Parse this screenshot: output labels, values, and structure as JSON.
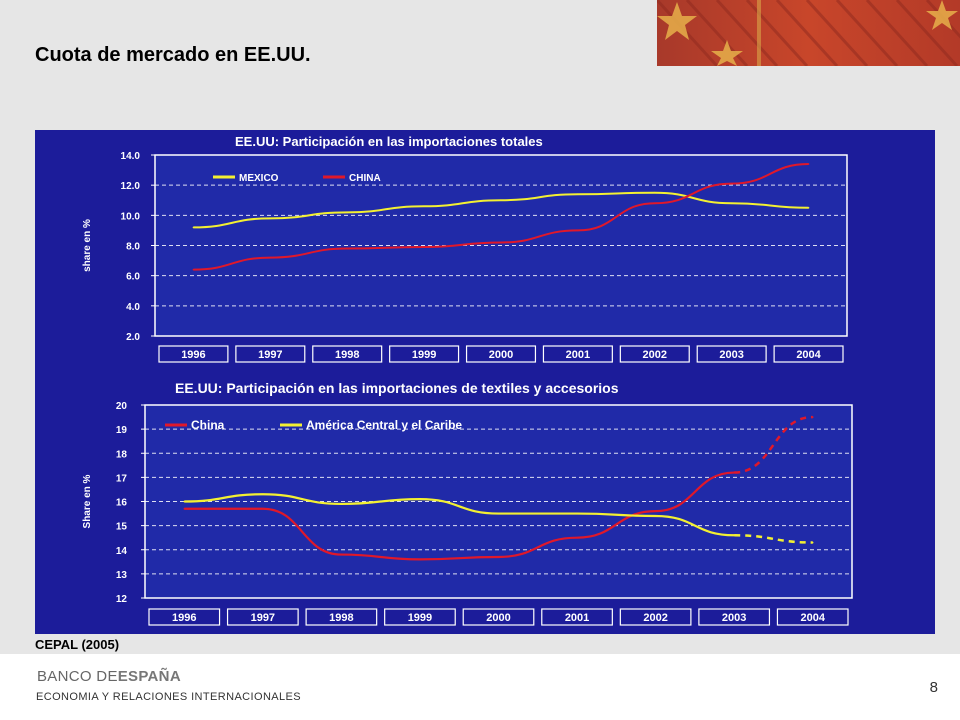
{
  "slide": {
    "title": "Cuota de mercado en EE.UU.",
    "source": "CEPAL (2005)",
    "footer_logo_prefix": "BANCO DE",
    "footer_logo_bold": "ESPAÑA",
    "footer_dept": "ECONOMIA Y RELACIONES INTERNACIONALES",
    "page_number": "8"
  },
  "colors": {
    "panel_bg": "#1c1c9a",
    "plot_bg": "#202aa8",
    "grid": "#ffffff",
    "text": "#ffffff",
    "series_yellow": "#f3f032",
    "series_red": "#e0182a"
  },
  "chart_data": [
    {
      "type": "line",
      "title": "EE.UU: Participación en las importaciones totales",
      "xlabel": "",
      "ylabel": "share en %",
      "categories": [
        "1996",
        "1997",
        "1998",
        "1999",
        "2000",
        "2001",
        "2002",
        "2003",
        "2004"
      ],
      "yticks": [
        "2.0",
        "4.0",
        "6.0",
        "8.0",
        "10.0",
        "12.0",
        "14.0"
      ],
      "ylim": [
        2,
        14
      ],
      "grid": true,
      "legend_position": "top-left",
      "series": [
        {
          "name": "MEXICO",
          "color": "#f3f032",
          "values": [
            9.2,
            9.8,
            10.2,
            10.6,
            11.0,
            11.4,
            11.5,
            10.8,
            10.5
          ]
        },
        {
          "name": "CHINA",
          "color": "#e0182a",
          "values": [
            6.4,
            7.2,
            7.8,
            7.9,
            8.2,
            9.0,
            10.8,
            12.1,
            13.4
          ]
        }
      ]
    },
    {
      "type": "line",
      "title": "EE.UU: Participación en las importaciones de textiles y accesorios",
      "xlabel": "",
      "ylabel": "Share en %",
      "categories": [
        "1996",
        "1997",
        "1998",
        "1999",
        "2000",
        "2001",
        "2002",
        "2003",
        "2004"
      ],
      "yticks": [
        "12",
        "13",
        "14",
        "15",
        "16",
        "17",
        "18",
        "19",
        "20"
      ],
      "ylim": [
        12,
        20
      ],
      "grid": true,
      "legend_position": "top-left",
      "dashed_from": "2003",
      "series": [
        {
          "name": "China",
          "color": "#e0182a",
          "values": [
            15.7,
            15.7,
            13.8,
            13.6,
            13.7,
            14.5,
            15.6,
            17.2,
            19.5
          ]
        },
        {
          "name": "América Central y el Caribe",
          "color": "#f3f032",
          "values": [
            16.0,
            16.3,
            15.9,
            16.1,
            15.5,
            15.5,
            15.4,
            14.6,
            14.3
          ]
        }
      ]
    }
  ]
}
